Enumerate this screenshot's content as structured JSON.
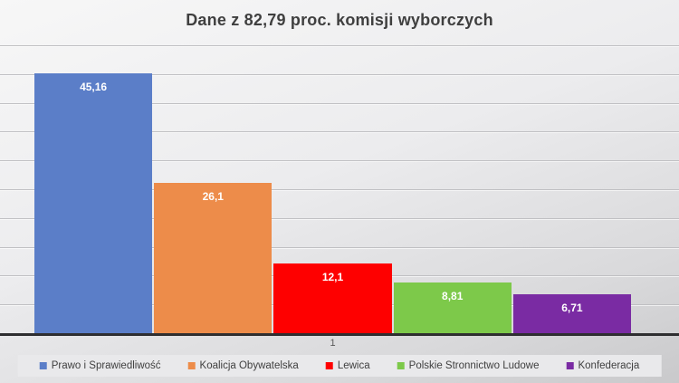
{
  "title": "Dane z 82,79 proc. komisji wyborczych",
  "chart_data": {
    "type": "bar",
    "title": "Dane z 82,79 proc. komisji wyborczych",
    "categories": [
      "1"
    ],
    "series": [
      {
        "name": "Prawo i Sprawiedliwość",
        "values": [
          45.16
        ],
        "value_label": "45,16",
        "color": "#5b7ec8"
      },
      {
        "name": "Koalicja Obywatelska",
        "values": [
          26.1
        ],
        "value_label": "26,1",
        "color": "#ed8c4a"
      },
      {
        "name": "Lewica",
        "values": [
          12.1
        ],
        "value_label": "12,1",
        "color": "#fe0000"
      },
      {
        "name": "Polskie Stronnictwo Ludowe",
        "values": [
          8.81
        ],
        "value_label": "8,81",
        "color": "#7dc94a"
      },
      {
        "name": "Konfederacja",
        "values": [
          6.71
        ],
        "value_label": "6,71",
        "color": "#7a2ba3"
      }
    ],
    "xlabel": "",
    "ylabel": "",
    "ylim": [
      0,
      50
    ],
    "grid_step": 5,
    "grid": true,
    "y_axis_labels_visible": false,
    "legend_position": "bottom",
    "data_labels": "inside-end"
  },
  "x_axis": {
    "tick_label": "1"
  },
  "colors": {
    "title_text": "#3f3f3f",
    "background_top": "#f7f7f7",
    "background_bottom": "#c9c9cb",
    "gridline": "#bfbfc2",
    "axis_line": "#2e2e30",
    "bar_label_text": "#ffffff",
    "legend_background": "#e9e9eb",
    "legend_text": "#404040",
    "tick_text": "#595959"
  }
}
